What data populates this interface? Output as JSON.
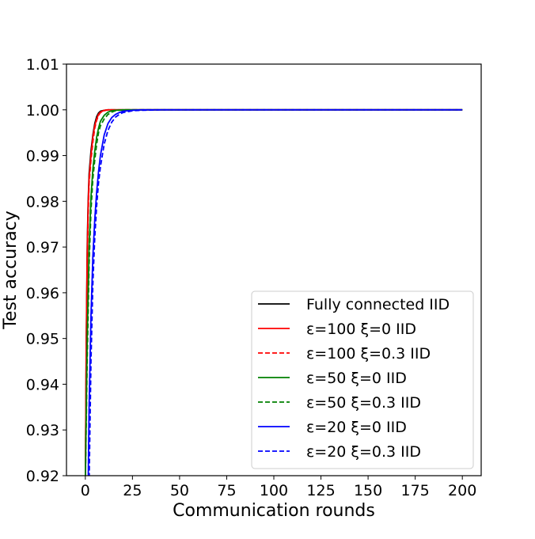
{
  "chart_data": {
    "type": "line",
    "title": "",
    "xlabel": "Communication rounds",
    "ylabel": "Test accuracy",
    "xlim": [
      -10,
      210
    ],
    "ylim": [
      0.92,
      1.01
    ],
    "xticks": [
      0,
      25,
      50,
      75,
      100,
      125,
      150,
      175,
      200
    ],
    "yticks": [
      0.92,
      0.93,
      0.94,
      0.95,
      0.96,
      0.97,
      0.98,
      0.99,
      1.0,
      1.01
    ],
    "ytick_labels": [
      "0.92",
      "0.93",
      "0.94",
      "0.95",
      "0.96",
      "0.97",
      "0.98",
      "0.99",
      "1.00",
      "1.01"
    ],
    "grid": false,
    "legend_position": "lower-right",
    "series": [
      {
        "name": "Fully connected IID",
        "color": "#000000",
        "dash": "solid",
        "x": [
          0,
          0.5,
          1,
          1.5,
          2,
          3,
          4,
          5,
          6,
          7,
          8,
          10,
          12,
          15,
          20,
          30,
          50,
          100,
          150,
          200
        ],
        "y": [
          0.918,
          0.95,
          0.97,
          0.98,
          0.986,
          0.991,
          0.9945,
          0.997,
          0.9985,
          0.9993,
          0.9997,
          0.9999,
          1.0,
          1.0,
          1.0,
          1.0,
          1.0,
          1.0,
          1.0,
          1.0
        ]
      },
      {
        "name": "ε=100 ξ=0 IID",
        "color": "#ff0000",
        "dash": "solid",
        "x": [
          0,
          0.5,
          1,
          1.5,
          2,
          3,
          4,
          5,
          6,
          7,
          8,
          10,
          12,
          15,
          20,
          30,
          50,
          100,
          150,
          200
        ],
        "y": [
          0.918,
          0.948,
          0.968,
          0.979,
          0.985,
          0.99,
          0.994,
          0.9965,
          0.998,
          0.999,
          0.9995,
          0.9999,
          1.0,
          1.0,
          1.0,
          1.0,
          1.0,
          1.0,
          1.0,
          1.0
        ]
      },
      {
        "name": "ε=100 ξ=0.3 IID",
        "color": "#ff0000",
        "dash": "dashed",
        "x": [
          0,
          0.5,
          1,
          1.5,
          2,
          3,
          4,
          5,
          6,
          7,
          8,
          10,
          12,
          15,
          20,
          30,
          50,
          100,
          150,
          200
        ],
        "y": [
          0.918,
          0.945,
          0.965,
          0.977,
          0.984,
          0.989,
          0.993,
          0.996,
          0.9977,
          0.9988,
          0.9994,
          0.9998,
          1.0,
          1.0,
          1.0,
          1.0,
          1.0,
          1.0,
          1.0,
          1.0
        ]
      },
      {
        "name": "ε=50 ξ=0 IID",
        "color": "#008000",
        "dash": "solid",
        "x": [
          0,
          1,
          2,
          3,
          4,
          5,
          6,
          7,
          8,
          10,
          12,
          14,
          16,
          20,
          25,
          30,
          50,
          100,
          150,
          200
        ],
        "y": [
          0.918,
          0.95,
          0.97,
          0.981,
          0.987,
          0.991,
          0.994,
          0.996,
          0.9975,
          0.9988,
          0.9995,
          0.9998,
          0.9999,
          1.0,
          1.0,
          1.0,
          1.0,
          1.0,
          1.0,
          1.0
        ]
      },
      {
        "name": "ε=50 ξ=0.3 IID",
        "color": "#008000",
        "dash": "dashed",
        "x": [
          0,
          1,
          2,
          3,
          4,
          5,
          6,
          7,
          8,
          10,
          12,
          14,
          16,
          20,
          25,
          30,
          50,
          100,
          150,
          200
        ],
        "y": [
          0.918,
          0.945,
          0.966,
          0.978,
          0.985,
          0.989,
          0.9925,
          0.995,
          0.9965,
          0.998,
          0.999,
          0.9995,
          0.9998,
          1.0,
          1.0,
          1.0,
          1.0,
          1.0,
          1.0,
          1.0
        ]
      },
      {
        "name": "ε=20 ξ=0 IID",
        "color": "#0000ff",
        "dash": "solid",
        "x": [
          1.5,
          2,
          3,
          4,
          5,
          6,
          7,
          8,
          10,
          12,
          14,
          16,
          18,
          20,
          25,
          30,
          40,
          50,
          100,
          150,
          200
        ],
        "y": [
          0.918,
          0.935,
          0.955,
          0.968,
          0.976,
          0.982,
          0.9865,
          0.99,
          0.9945,
          0.997,
          0.9983,
          0.999,
          0.9994,
          0.9997,
          0.9999,
          1.0,
          1.0,
          1.0,
          1.0,
          1.0,
          1.0
        ]
      },
      {
        "name": "ε=20 ξ=0.3 IID",
        "color": "#0000ff",
        "dash": "dashed",
        "x": [
          2,
          3,
          4,
          5,
          6,
          7,
          8,
          10,
          12,
          14,
          16,
          18,
          20,
          25,
          30,
          40,
          50,
          100,
          150,
          200
        ],
        "y": [
          0.918,
          0.945,
          0.962,
          0.972,
          0.979,
          0.984,
          0.9875,
          0.9925,
          0.9955,
          0.9973,
          0.9984,
          0.999,
          0.9994,
          0.9998,
          0.9999,
          1.0,
          1.0,
          1.0,
          1.0,
          1.0
        ]
      }
    ]
  }
}
